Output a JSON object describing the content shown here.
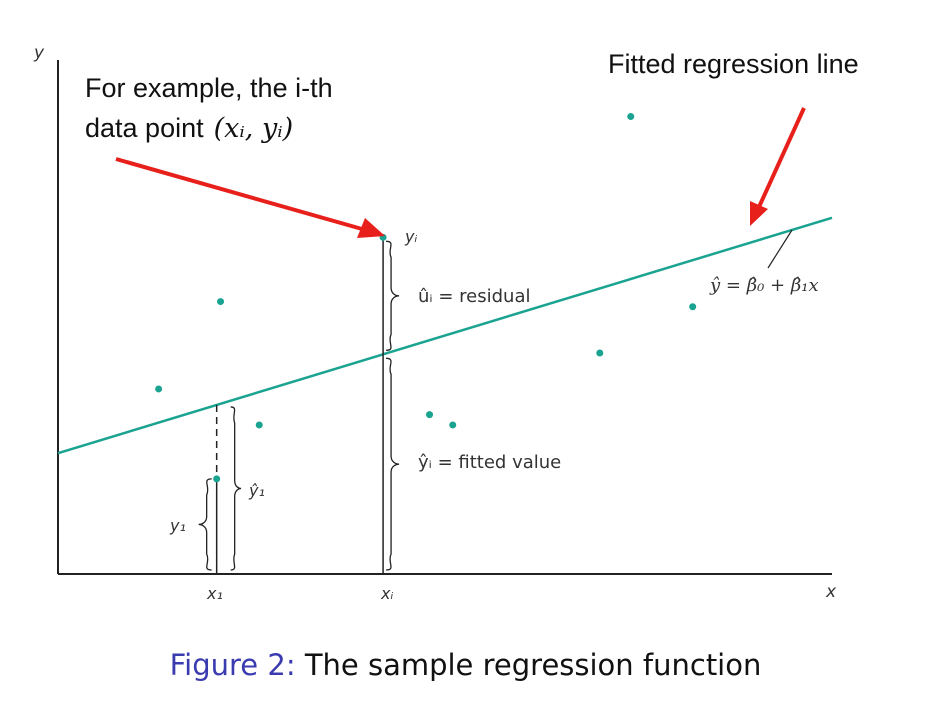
{
  "chart_data": {
    "type": "scatter",
    "title": "",
    "xlabel": "x",
    "ylabel": "y",
    "xlim": [
      0,
      100
    ],
    "ylim": [
      0,
      100
    ],
    "grid": false,
    "regression_line": {
      "intercept": 23.5,
      "slope": 0.458,
      "label": "ŷ = β̂₀ + β̂₁x",
      "color": "#1aa391"
    },
    "points": [
      {
        "x": 13,
        "y": 36
      },
      {
        "x": 21,
        "y": 53
      },
      {
        "x": 26,
        "y": 29
      },
      {
        "x": 48,
        "y": 31
      },
      {
        "x": 51,
        "y": 29
      },
      {
        "x": 70,
        "y": 43
      },
      {
        "x": 74,
        "y": 89
      },
      {
        "x": 82,
        "y": 52
      }
    ],
    "point_i": {
      "x": 42,
      "y": 65.5,
      "label": "yᵢ"
    },
    "point_1": {
      "x": 20.5,
      "y": 18.5,
      "label_y": "y₁",
      "label_fit": "ŷ₁"
    },
    "tick_labels": {
      "x1": "x₁",
      "xi": "xᵢ"
    },
    "annotations": {
      "residual": "ûᵢ = residual",
      "fitted": "ŷᵢ = fitted value",
      "example_line1": "For example, the i-th",
      "example_line2": "data point",
      "example_math": "(xᵢ, yᵢ)",
      "fitted_line": "Fitted regression line"
    },
    "colors": {
      "points": "#1aa391",
      "arrow": "#e8201b",
      "axis": "#222222"
    }
  },
  "caption": {
    "figure_label": "Figure 2:",
    "text": "The sample regression function"
  }
}
